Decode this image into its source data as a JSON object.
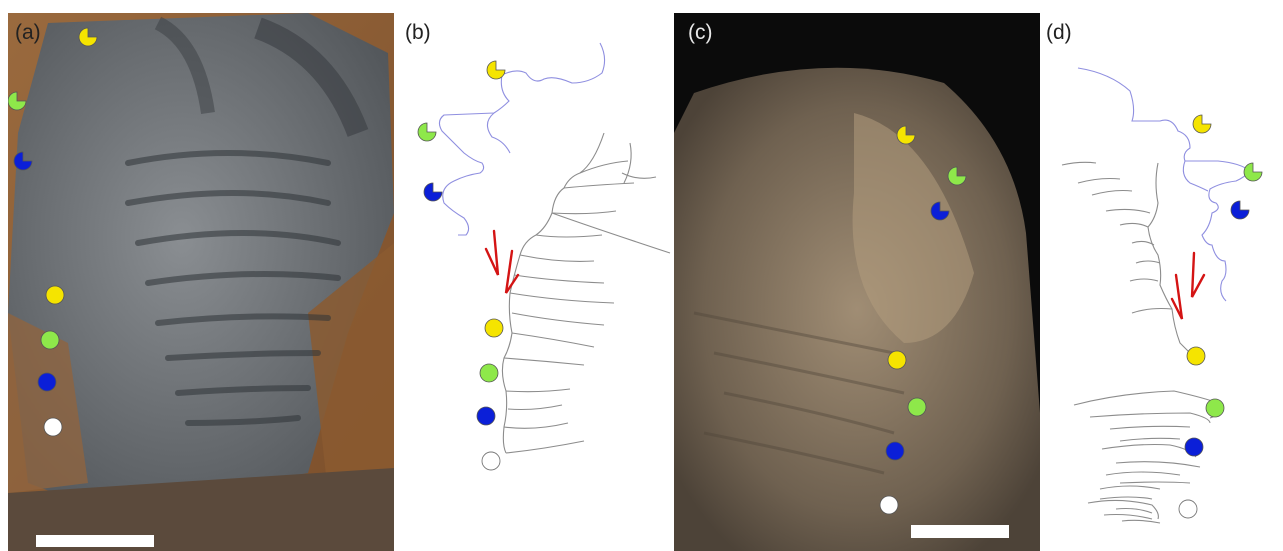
{
  "figure": {
    "panels": [
      {
        "id": "a",
        "label": "(a)",
        "kind": "photograph",
        "scale_bar": true
      },
      {
        "id": "b",
        "label": "(b)",
        "kind": "line-drawing",
        "shear_arrows": true
      },
      {
        "id": "c",
        "label": "(c)",
        "kind": "photograph",
        "scale_bar": true
      },
      {
        "id": "d",
        "label": "(d)",
        "kind": "line-drawing",
        "shear_arrows": true
      }
    ],
    "marker_colors": {
      "yellow": "#f5e400",
      "green": "#8ee84a",
      "blue": "#0b1fd8",
      "white": "#ffffff",
      "arrow": "#d41414",
      "outline_blue": "#8f8fe0",
      "outline_grey": "#888888"
    }
  }
}
